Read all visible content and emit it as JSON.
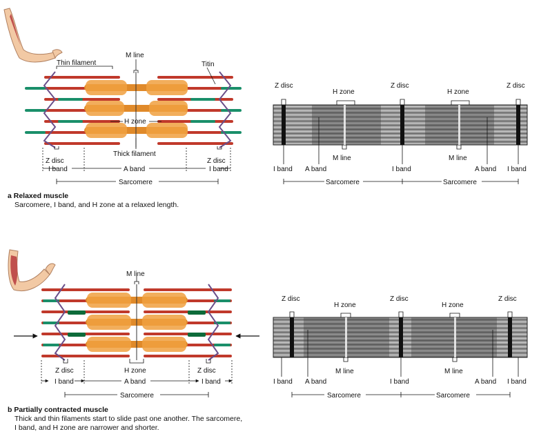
{
  "panel_a": {
    "diagram": {
      "m_line": "M line",
      "thin_filament": "Thin filament",
      "titin": "Titin",
      "h_zone": "H zone",
      "thick_filament": "Thick filament",
      "z_disc_left": "Z disc",
      "z_disc_right": "Z disc",
      "i_band_left": "I band",
      "a_band": "A band",
      "i_band_right": "I band",
      "sarcomere": "Sarcomere"
    },
    "micrograph": {
      "z_disc_1": "Z disc",
      "z_disc_2": "Z disc",
      "z_disc_3": "Z disc",
      "h_zone_1": "H zone",
      "h_zone_2": "H zone",
      "m_line_1": "M line",
      "m_line_2": "M line",
      "i_band_1": "I band",
      "a_band_1": "A band",
      "i_band_2": "I band",
      "a_band_2": "A band",
      "i_band_3": "I band",
      "sarcomere_1": "Sarcomere",
      "sarcomere_2": "Sarcomere"
    },
    "caption_title": "a Relaxed muscle",
    "caption_line1": "Sarcomere, I band, and H zone at a relaxed length."
  },
  "panel_b": {
    "diagram": {
      "m_line": "M line",
      "h_zone": "H zone",
      "z_disc_left": "Z disc",
      "z_disc_right": "Z disc",
      "i_band_left": "I band",
      "a_band": "A band",
      "i_band_right": "I band",
      "sarcomere": "Sarcomere"
    },
    "micrograph": {
      "z_disc_1": "Z disc",
      "z_disc_2": "Z disc",
      "z_disc_3": "Z disc",
      "h_zone_1": "H zone",
      "h_zone_2": "H zone",
      "m_line_1": "M line",
      "m_line_2": "M line",
      "i_band_1": "I band",
      "a_band_1": "A band",
      "i_band_2": "I band",
      "a_band_2": "A band",
      "i_band_3": "I band",
      "sarcomere_1": "Sarcomere",
      "sarcomere_2": "Sarcomere"
    },
    "caption_title": "b Partially contracted muscle",
    "caption_line1": "Thick and thin filaments start to slide past one another. The sarcomere,",
    "caption_line2": "I band, and H zone are narrower and shorter."
  },
  "colors": {
    "thin_filament": "#c0392b",
    "thin_filament_bead": "#2e6fa8",
    "thick_filament": "#e08a2a",
    "thick_head": "#f0a040",
    "titin_green": "#1a8f6a",
    "titin_dark": "#0d6b3a",
    "z_disc": "#6a4f8a",
    "arm_skin": "#f2c9a4",
    "arm_muscle": "#c0504d"
  }
}
